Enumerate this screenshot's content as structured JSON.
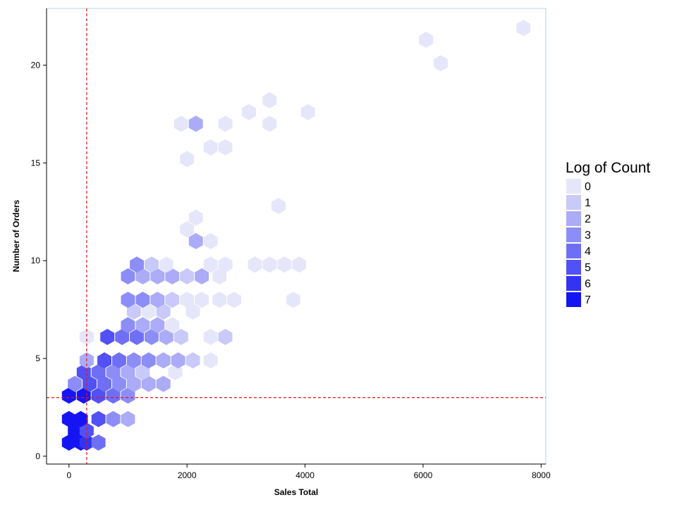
{
  "chart_data": {
    "type": "hexbin",
    "xlabel": "Sales Total",
    "ylabel": "Number of Orders",
    "xlim": [
      -380,
      8080
    ],
    "ylim": [
      -0.4,
      22.9
    ],
    "x_ticks": [
      0,
      2000,
      4000,
      6000,
      8000
    ],
    "y_ticks": [
      0,
      5,
      10,
      15,
      20
    ],
    "grid": false,
    "reference_lines": {
      "vertical_x": 300,
      "horizontal_y": 3,
      "color": "#e8141b",
      "style": "dashed"
    },
    "legend": {
      "title": "Log of Count",
      "placement": "right",
      "levels": [
        {
          "label": "0",
          "color": "#e6e6fb"
        },
        {
          "label": "1",
          "color": "#c9c9fa"
        },
        {
          "label": "2",
          "color": "#ababf8"
        },
        {
          "label": "3",
          "color": "#8d8df7"
        },
        {
          "label": "4",
          "color": "#6f6ff6"
        },
        {
          "label": "5",
          "color": "#5151f5"
        },
        {
          "label": "6",
          "color": "#3333f4"
        },
        {
          "label": "7",
          "color": "#1515f4"
        }
      ]
    },
    "bins": [
      {
        "x": 0,
        "y": 0.7,
        "level": 7
      },
      {
        "x": 200,
        "y": 0.7,
        "level": 7
      },
      {
        "x": 300,
        "y": 0.7,
        "level": 6
      },
      {
        "x": 500,
        "y": 0.7,
        "level": 4
      },
      {
        "x": 100,
        "y": 1.3,
        "level": 7
      },
      {
        "x": 300,
        "y": 1.3,
        "level": 5
      },
      {
        "x": 0,
        "y": 1.9,
        "level": 7
      },
      {
        "x": 200,
        "y": 1.9,
        "level": 7
      },
      {
        "x": 500,
        "y": 1.9,
        "level": 5
      },
      {
        "x": 750,
        "y": 1.9,
        "level": 3
      },
      {
        "x": 1000,
        "y": 1.9,
        "level": 2
      },
      {
        "x": 0,
        "y": 3.1,
        "level": 7
      },
      {
        "x": 250,
        "y": 3.1,
        "level": 7
      },
      {
        "x": 500,
        "y": 3.1,
        "level": 5
      },
      {
        "x": 750,
        "y": 3.1,
        "level": 4
      },
      {
        "x": 1000,
        "y": 3.1,
        "level": 3
      },
      {
        "x": 100,
        "y": 3.7,
        "level": 3
      },
      {
        "x": 350,
        "y": 3.7,
        "level": 5
      },
      {
        "x": 600,
        "y": 3.7,
        "level": 4
      },
      {
        "x": 850,
        "y": 3.7,
        "level": 3
      },
      {
        "x": 1100,
        "y": 3.7,
        "level": 2
      },
      {
        "x": 1350,
        "y": 3.7,
        "level": 2
      },
      {
        "x": 1600,
        "y": 3.7,
        "level": 2
      },
      {
        "x": 250,
        "y": 4.3,
        "level": 5
      },
      {
        "x": 500,
        "y": 4.3,
        "level": 4
      },
      {
        "x": 750,
        "y": 4.3,
        "level": 3
      },
      {
        "x": 1000,
        "y": 4.3,
        "level": 2
      },
      {
        "x": 1250,
        "y": 4.3,
        "level": 1
      },
      {
        "x": 1800,
        "y": 4.3,
        "level": 0
      },
      {
        "x": 300,
        "y": 4.9,
        "level": 2
      },
      {
        "x": 600,
        "y": 4.9,
        "level": 5
      },
      {
        "x": 850,
        "y": 4.9,
        "level": 4
      },
      {
        "x": 1100,
        "y": 4.9,
        "level": 3
      },
      {
        "x": 1350,
        "y": 4.9,
        "level": 3
      },
      {
        "x": 1600,
        "y": 4.9,
        "level": 2
      },
      {
        "x": 1850,
        "y": 4.9,
        "level": 2
      },
      {
        "x": 2100,
        "y": 4.9,
        "level": 1
      },
      {
        "x": 2400,
        "y": 4.9,
        "level": 0
      },
      {
        "x": 300,
        "y": 6.1,
        "level": 0
      },
      {
        "x": 650,
        "y": 6.1,
        "level": 5
      },
      {
        "x": 900,
        "y": 6.1,
        "level": 4
      },
      {
        "x": 1150,
        "y": 6.1,
        "level": 4
      },
      {
        "x": 1400,
        "y": 6.1,
        "level": 3
      },
      {
        "x": 1650,
        "y": 6.1,
        "level": 2
      },
      {
        "x": 1900,
        "y": 6.1,
        "level": 1
      },
      {
        "x": 2400,
        "y": 6.1,
        "level": 0
      },
      {
        "x": 2650,
        "y": 6.1,
        "level": 1
      },
      {
        "x": 1000,
        "y": 6.7,
        "level": 3
      },
      {
        "x": 1250,
        "y": 6.7,
        "level": 2
      },
      {
        "x": 1500,
        "y": 6.7,
        "level": 2
      },
      {
        "x": 1750,
        "y": 6.7,
        "level": 0
      },
      {
        "x": 1100,
        "y": 7.4,
        "level": 1
      },
      {
        "x": 1350,
        "y": 7.4,
        "level": 0
      },
      {
        "x": 1600,
        "y": 7.4,
        "level": 1
      },
      {
        "x": 2100,
        "y": 7.4,
        "level": 0
      },
      {
        "x": 1000,
        "y": 8.0,
        "level": 3
      },
      {
        "x": 1250,
        "y": 8.0,
        "level": 3
      },
      {
        "x": 1500,
        "y": 8.0,
        "level": 2
      },
      {
        "x": 1750,
        "y": 8.0,
        "level": 1
      },
      {
        "x": 2000,
        "y": 8.0,
        "level": 0
      },
      {
        "x": 2250,
        "y": 8.0,
        "level": 0
      },
      {
        "x": 2550,
        "y": 8.0,
        "level": 0
      },
      {
        "x": 2800,
        "y": 8.0,
        "level": 0
      },
      {
        "x": 3800,
        "y": 8.0,
        "level": 0
      },
      {
        "x": 1000,
        "y": 9.2,
        "level": 3
      },
      {
        "x": 1250,
        "y": 9.2,
        "level": 2
      },
      {
        "x": 1500,
        "y": 9.2,
        "level": 2
      },
      {
        "x": 1750,
        "y": 9.2,
        "level": 2
      },
      {
        "x": 2000,
        "y": 9.2,
        "level": 1
      },
      {
        "x": 2250,
        "y": 9.2,
        "level": 2
      },
      {
        "x": 2550,
        "y": 9.2,
        "level": 0
      },
      {
        "x": 1150,
        "y": 9.8,
        "level": 3
      },
      {
        "x": 1400,
        "y": 9.8,
        "level": 1
      },
      {
        "x": 1650,
        "y": 9.8,
        "level": 0
      },
      {
        "x": 2400,
        "y": 9.8,
        "level": 0
      },
      {
        "x": 2650,
        "y": 9.8,
        "level": 0
      },
      {
        "x": 3150,
        "y": 9.8,
        "level": 0
      },
      {
        "x": 3400,
        "y": 9.8,
        "level": 0
      },
      {
        "x": 3650,
        "y": 9.8,
        "level": 0
      },
      {
        "x": 3900,
        "y": 9.8,
        "level": 0
      },
      {
        "x": 2150,
        "y": 11.0,
        "level": 2
      },
      {
        "x": 2400,
        "y": 11.0,
        "level": 0
      },
      {
        "x": 2000,
        "y": 11.6,
        "level": 0
      },
      {
        "x": 2150,
        "y": 12.2,
        "level": 0
      },
      {
        "x": 3550,
        "y": 12.8,
        "level": 0
      },
      {
        "x": 2000,
        "y": 15.2,
        "level": 0
      },
      {
        "x": 2400,
        "y": 15.8,
        "level": 0
      },
      {
        "x": 2650,
        "y": 15.8,
        "level": 0
      },
      {
        "x": 1900,
        "y": 17.0,
        "level": 0
      },
      {
        "x": 2150,
        "y": 17.0,
        "level": 2
      },
      {
        "x": 2650,
        "y": 17.0,
        "level": 0
      },
      {
        "x": 3400,
        "y": 17.0,
        "level": 0
      },
      {
        "x": 3050,
        "y": 17.6,
        "level": 0
      },
      {
        "x": 4050,
        "y": 17.6,
        "level": 0
      },
      {
        "x": 3400,
        "y": 18.2,
        "level": 0
      },
      {
        "x": 6300,
        "y": 20.1,
        "level": 0
      },
      {
        "x": 6050,
        "y": 21.3,
        "level": 0
      },
      {
        "x": 7700,
        "y": 21.9,
        "level": 0
      }
    ]
  }
}
